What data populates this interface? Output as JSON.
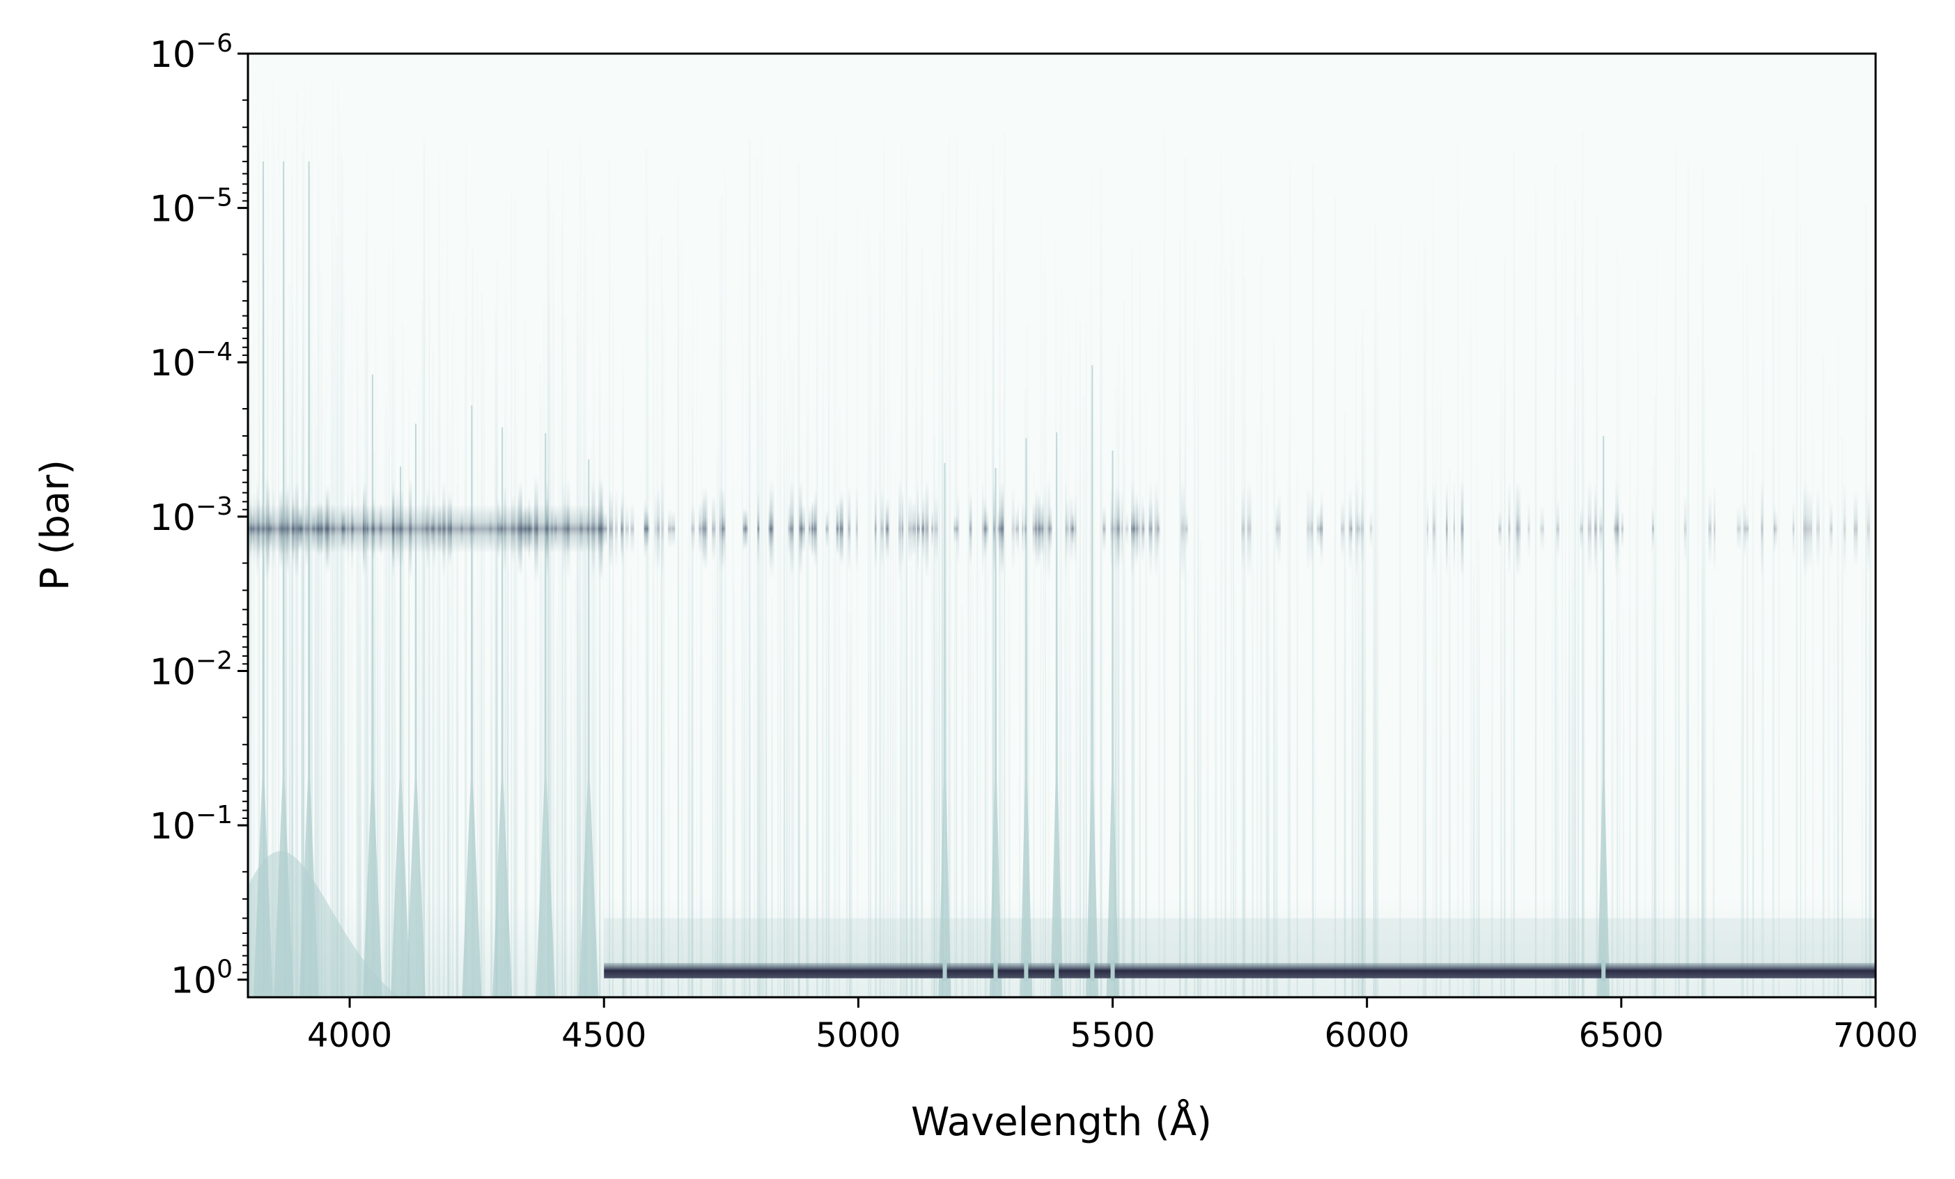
{
  "chart_data": {
    "type": "heatmap",
    "title": "",
    "xlabel": "Wavelength (Å)",
    "ylabel": "P (bar)",
    "xlim": [
      3800,
      7000
    ],
    "ylim": [
      1.3,
      1e-06
    ],
    "y_scale": "log",
    "y_inverted": true,
    "grid": false,
    "x_ticks": [
      {
        "value": 4000,
        "label": "4000"
      },
      {
        "value": 4500,
        "label": "4500"
      },
      {
        "value": 5000,
        "label": "5000"
      },
      {
        "value": 5500,
        "label": "5500"
      },
      {
        "value": 6000,
        "label": "6000"
      },
      {
        "value": 6500,
        "label": "6500"
      },
      {
        "value": 7000,
        "label": "7000"
      }
    ],
    "y_ticks": [
      {
        "value": 1e-06,
        "base": "10",
        "exp": "−6"
      },
      {
        "value": 1e-05,
        "base": "10",
        "exp": "−5"
      },
      {
        "value": 0.0001,
        "base": "10",
        "exp": "−4"
      },
      {
        "value": 0.001,
        "base": "10",
        "exp": "−3"
      },
      {
        "value": 0.01,
        "base": "10",
        "exp": "−2"
      },
      {
        "value": 0.1,
        "base": "10",
        "exp": "−1"
      },
      {
        "value": 1,
        "base": "10",
        "exp": "0"
      }
    ],
    "colors": {
      "background": "#f7fbfa",
      "light": "#b2cfcf",
      "mid": "#7f9aa3",
      "dark": "#2a2c45"
    },
    "features": {
      "dark_band_pressure_bar": 0.0012,
      "bottom_dark_layer_start_wavelength": 4500,
      "bottom_dark_layer_pressure_bar": 1.0,
      "strong_lines_wavelength": [
        3830,
        3870,
        3920,
        4045,
        4100,
        4130,
        4240,
        4300,
        4385,
        4470,
        5170,
        5270,
        5330,
        5390,
        5460,
        5500,
        6465
      ]
    }
  }
}
